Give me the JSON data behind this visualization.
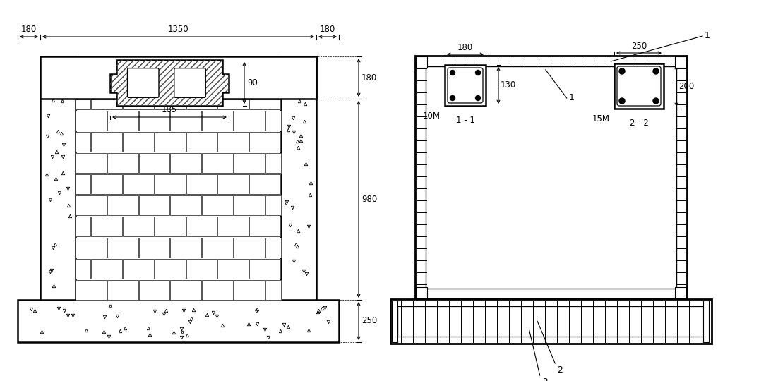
{
  "bg_color": "#ffffff",
  "line_color": "#000000",
  "dim_180_top_left": "180",
  "dim_1350": "1350",
  "dim_180_top_right": "180",
  "dim_180_right": "180",
  "dim_980": "980",
  "dim_250": "250",
  "dim_90": "90",
  "dim_185": "185",
  "right_panel_label1": "1",
  "right_panel_label2": "2",
  "section_label_11": "1 - 1",
  "section_label_22": "2 - 2",
  "dim_180_sec1": "180",
  "dim_130_sec1": "130",
  "bar_label_1": "10M",
  "dim_250_sec2": "250",
  "dim_200_sec2": "200",
  "bar_label_2": "15M",
  "font_size": 9
}
